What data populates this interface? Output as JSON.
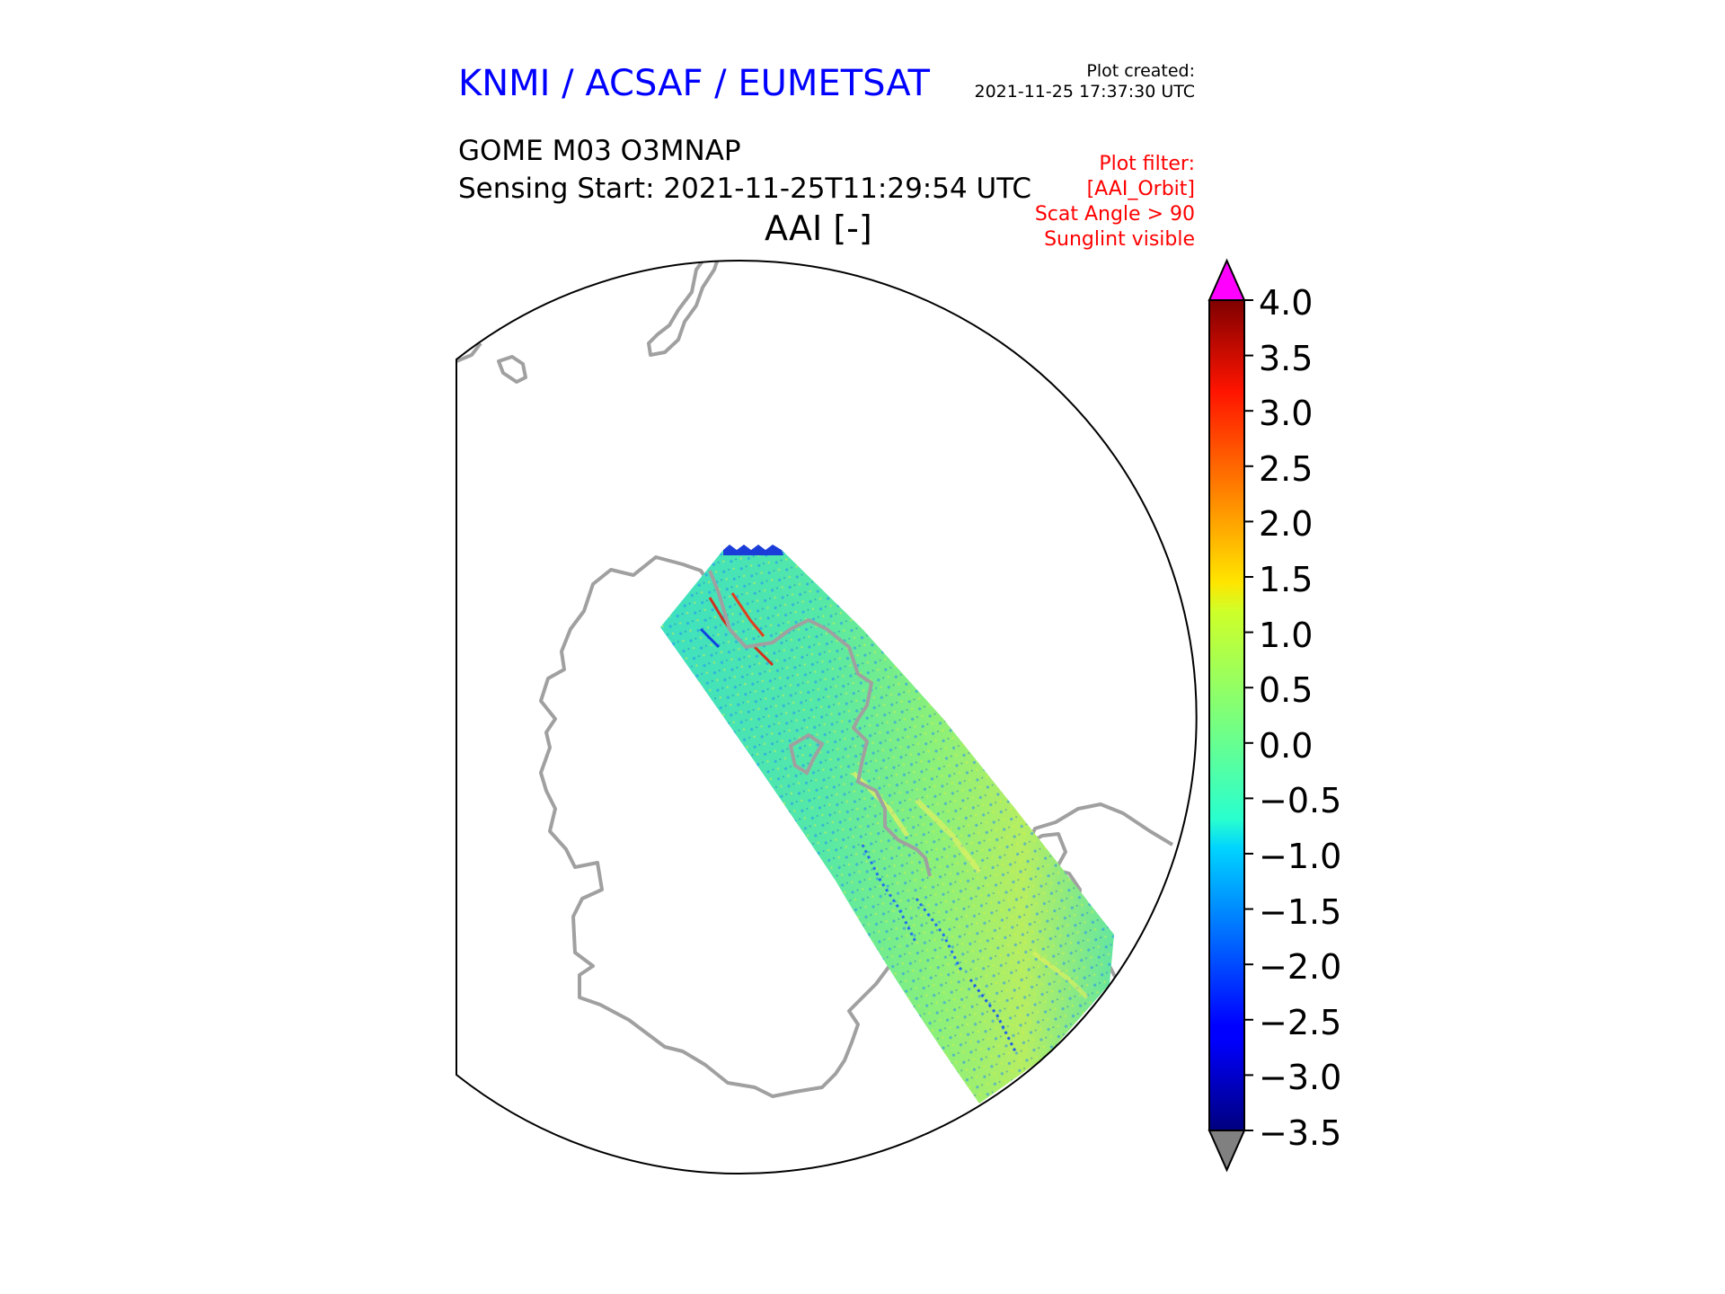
{
  "header": {
    "agency": "KNMI / ACSAF / EUMETSAT",
    "plot_created_label": "Plot created:",
    "plot_created_time": "2021-11-25 17:37:30 UTC",
    "product": "GOME M03 O3MNAP",
    "sensing_start": "Sensing Start: 2021-11-25T11:29:54 UTC",
    "variable": "AAI [-]"
  },
  "plot_filter": {
    "title": "Plot filter:",
    "lines": [
      "[AAI_Orbit]",
      "Scat Angle > 90",
      "Sunglint visible"
    ]
  },
  "colorbar": {
    "ticks": [
      "4.0",
      "3.5",
      "3.0",
      "2.5",
      "2.0",
      "1.5",
      "1.0",
      "0.5",
      "0.0",
      "−0.5",
      "−1.0",
      "−1.5",
      "−2.0",
      "−2.5",
      "−3.0",
      "−3.5"
    ],
    "min": -3.5,
    "max": 4.0,
    "over_color": "#ff00ff",
    "under_color": "#808080",
    "colormap": "jet"
  },
  "map": {
    "projection": "polar stereographic (south pole)",
    "coastline_color": "#a0a0a0",
    "swath_dominant_color": "#40e8a8"
  }
}
